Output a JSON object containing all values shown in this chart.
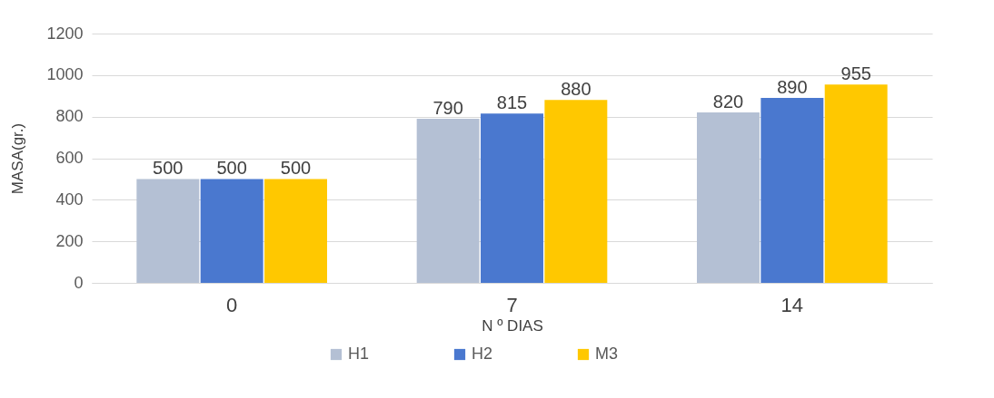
{
  "chart_data": {
    "type": "bar",
    "xlabel": "N º DIAS",
    "ylabel": "MASA(gr.)",
    "categories": [
      "0",
      "7",
      "14"
    ],
    "series": [
      {
        "name": "H1",
        "color": "#b4c0d4",
        "values": [
          500,
          790,
          820
        ]
      },
      {
        "name": "H2",
        "color": "#4a78cf",
        "values": [
          500,
          815,
          890
        ]
      },
      {
        "name": "M3",
        "color": "#ffc800",
        "values": [
          500,
          880,
          955
        ]
      }
    ],
    "ylim": [
      0,
      1200
    ],
    "yticks": [
      0,
      200,
      400,
      600,
      800,
      1000,
      1200
    ],
    "grid": "y",
    "legend": "bottom",
    "data_labels": true
  }
}
